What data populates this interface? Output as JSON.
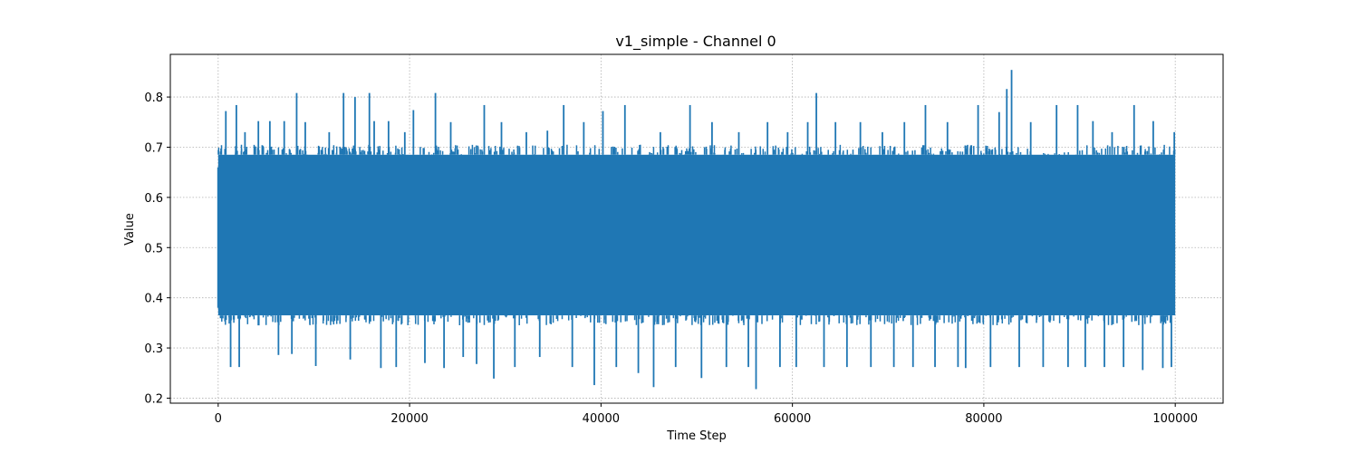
{
  "chart_data": {
    "type": "line",
    "title": "v1_simple - Channel 0",
    "xlabel": "Time Step",
    "ylabel": "Value",
    "xlim": [
      -5000,
      105000
    ],
    "ylim": [
      0.19,
      0.885
    ],
    "xticks": [
      0,
      20000,
      40000,
      60000,
      80000,
      100000
    ],
    "yticks": [
      0.2,
      0.3,
      0.4,
      0.5,
      0.6,
      0.7,
      0.8
    ],
    "grid": true,
    "color": "#1f77b4",
    "series": [
      {
        "x": [
          0,
          100000
        ],
        "y_band": [
          0.365,
          0.685
        ],
        "summary": "dense noisy signal, bulk between ~0.365 and ~0.685",
        "spikes": [
          [
            800,
            0.772
          ],
          [
            1300,
            0.262
          ],
          [
            1900,
            0.784
          ],
          [
            2200,
            0.262
          ],
          [
            2800,
            0.73
          ],
          [
            4200,
            0.752
          ],
          [
            5400,
            0.752
          ],
          [
            6300,
            0.286
          ],
          [
            6900,
            0.752
          ],
          [
            7700,
            0.288
          ],
          [
            8200,
            0.808
          ],
          [
            9100,
            0.75
          ],
          [
            10200,
            0.264
          ],
          [
            11600,
            0.73
          ],
          [
            13100,
            0.808
          ],
          [
            13800,
            0.277
          ],
          [
            14300,
            0.8
          ],
          [
            15800,
            0.808
          ],
          [
            16300,
            0.752
          ],
          [
            17000,
            0.26
          ],
          [
            17800,
            0.752
          ],
          [
            18600,
            0.262
          ],
          [
            19500,
            0.73
          ],
          [
            20400,
            0.774
          ],
          [
            21600,
            0.27
          ],
          [
            22700,
            0.808
          ],
          [
            23600,
            0.26
          ],
          [
            24300,
            0.75
          ],
          [
            25600,
            0.282
          ],
          [
            27000,
            0.268
          ],
          [
            27800,
            0.784
          ],
          [
            28800,
            0.239
          ],
          [
            29600,
            0.75
          ],
          [
            31000,
            0.262
          ],
          [
            32200,
            0.73
          ],
          [
            33600,
            0.282
          ],
          [
            34400,
            0.733
          ],
          [
            36100,
            0.784
          ],
          [
            37000,
            0.262
          ],
          [
            38200,
            0.75
          ],
          [
            39300,
            0.226
          ],
          [
            40200,
            0.772
          ],
          [
            41600,
            0.262
          ],
          [
            42500,
            0.784
          ],
          [
            43900,
            0.25
          ],
          [
            45500,
            0.222
          ],
          [
            46200,
            0.73
          ],
          [
            47800,
            0.262
          ],
          [
            49300,
            0.784
          ],
          [
            50500,
            0.24
          ],
          [
            51600,
            0.75
          ],
          [
            53100,
            0.262
          ],
          [
            54400,
            0.73
          ],
          [
            55400,
            0.262
          ],
          [
            56200,
            0.218
          ],
          [
            57400,
            0.75
          ],
          [
            58700,
            0.262
          ],
          [
            59500,
            0.73
          ],
          [
            60400,
            0.262
          ],
          [
            61600,
            0.75
          ],
          [
            62500,
            0.808
          ],
          [
            63300,
            0.262
          ],
          [
            64500,
            0.75
          ],
          [
            65700,
            0.262
          ],
          [
            67100,
            0.75
          ],
          [
            68200,
            0.262
          ],
          [
            69400,
            0.73
          ],
          [
            70600,
            0.262
          ],
          [
            71700,
            0.75
          ],
          [
            72600,
            0.262
          ],
          [
            73900,
            0.784
          ],
          [
            74900,
            0.262
          ],
          [
            76200,
            0.75
          ],
          [
            77300,
            0.262
          ],
          [
            78100,
            0.26
          ],
          [
            79400,
            0.784
          ],
          [
            80700,
            0.262
          ],
          [
            81600,
            0.77
          ],
          [
            82400,
            0.816
          ],
          [
            82900,
            0.854
          ],
          [
            83700,
            0.262
          ],
          [
            84900,
            0.75
          ],
          [
            86200,
            0.262
          ],
          [
            87600,
            0.784
          ],
          [
            88800,
            0.262
          ],
          [
            89800,
            0.784
          ],
          [
            90600,
            0.262
          ],
          [
            91400,
            0.752
          ],
          [
            92600,
            0.262
          ],
          [
            93400,
            0.73
          ],
          [
            94600,
            0.262
          ],
          [
            95700,
            0.784
          ],
          [
            96600,
            0.256
          ],
          [
            97700,
            0.752
          ],
          [
            98700,
            0.26
          ],
          [
            99600,
            0.262
          ],
          [
            99900,
            0.73
          ]
        ]
      }
    ]
  }
}
